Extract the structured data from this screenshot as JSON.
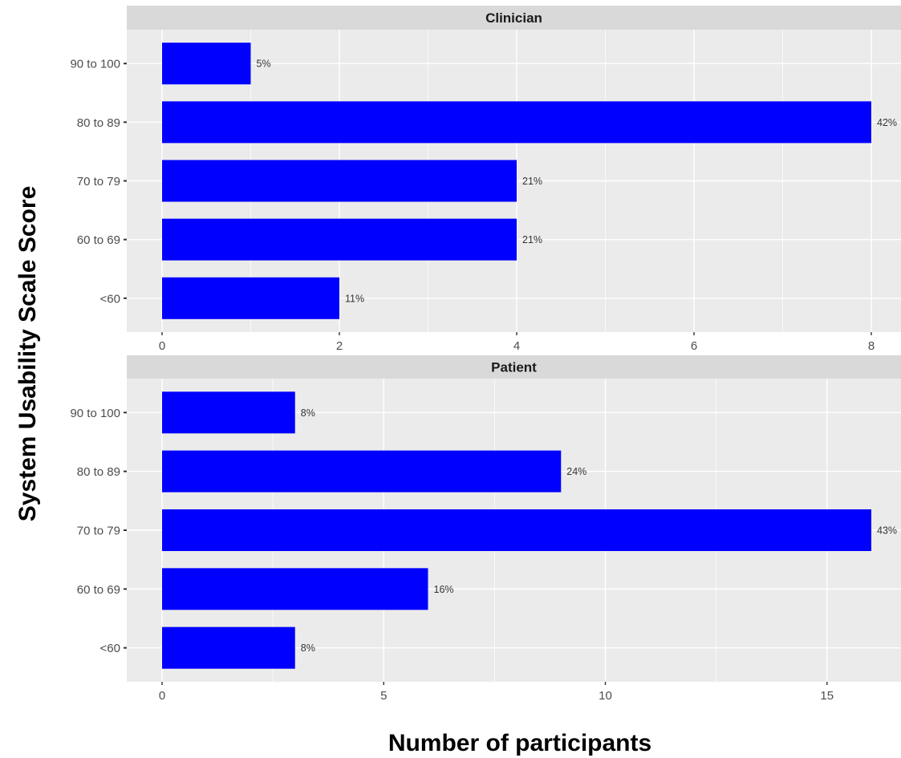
{
  "chart_data": {
    "type": "bar",
    "orientation": "horizontal",
    "layout": "facets-stacked-vertically",
    "xlabel": "Number of participants",
    "ylabel": "System Usability Scale Score",
    "bar_color": "#0000ff",
    "panel_background": "#ebebeb",
    "strip_background": "#d9d9d9",
    "grid": true,
    "categories": [
      "<60",
      "60 to 69",
      "70 to 79",
      "80 to 89",
      "90 to 100"
    ],
    "facets": [
      {
        "name": "Clinician",
        "values": [
          2,
          4,
          4,
          8,
          1
        ],
        "labels": [
          "11%",
          "21%",
          "21%",
          "42%",
          "5%"
        ],
        "xlim": [
          0,
          8
        ],
        "xticks": [
          0,
          2,
          4,
          6,
          8
        ]
      },
      {
        "name": "Patient",
        "values": [
          3,
          6,
          16,
          9,
          3
        ],
        "labels": [
          "8%",
          "16%",
          "43%",
          "24%",
          "8%"
        ],
        "xlim": [
          0,
          16
        ],
        "xticks": [
          0,
          5,
          10,
          15
        ]
      }
    ]
  }
}
